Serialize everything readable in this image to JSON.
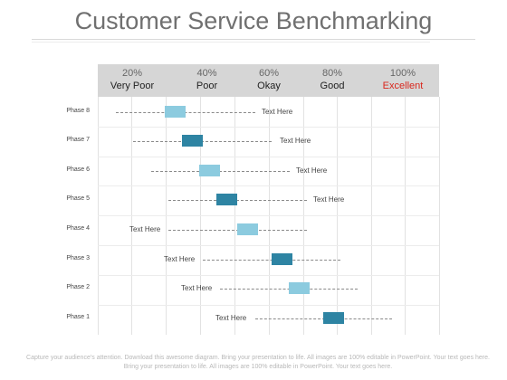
{
  "title": "Customer Service Benchmarking",
  "header": [
    {
      "pct": "20%",
      "label": "Very Poor",
      "color": "#222222"
    },
    {
      "pct": "40%",
      "label": "Poor",
      "color": "#222222"
    },
    {
      "pct": "60%",
      "label": "Okay",
      "color": "#222222"
    },
    {
      "pct": "80%",
      "label": "Good",
      "color": "#222222"
    },
    {
      "pct": "100%",
      "label": "Excellent",
      "color": "#d9261c"
    }
  ],
  "phases": [
    {
      "label": "Phase 8",
      "text": "Text Here",
      "shade": "light"
    },
    {
      "label": "Phase 7",
      "text": "Text Here",
      "shade": "dark"
    },
    {
      "label": "Phase 6",
      "text": "Text Here",
      "shade": "light"
    },
    {
      "label": "Phase 5",
      "text": "Text Here",
      "shade": "dark"
    },
    {
      "label": "Phase 4",
      "text": "Text Here",
      "shade": "light"
    },
    {
      "label": "Phase 3",
      "text": "Text Here",
      "shade": "dark"
    },
    {
      "label": "Phase 2",
      "text": "Text Here",
      "shade": "light"
    },
    {
      "label": "Phase 1",
      "text": "Text Here",
      "shade": "dark"
    }
  ],
  "colors": {
    "light": "#8ccbdf",
    "dark": "#2e84a3",
    "excellent": "#d9261c"
  },
  "footer": "Capture your audience’s attention. Download this awesome diagram. Bring your presentation to life. All images are 100% editable in PowerPoint. Your text goes here. Bring your presentation to life. All images are 100% editable in PowerPoint. Your text goes here."
}
